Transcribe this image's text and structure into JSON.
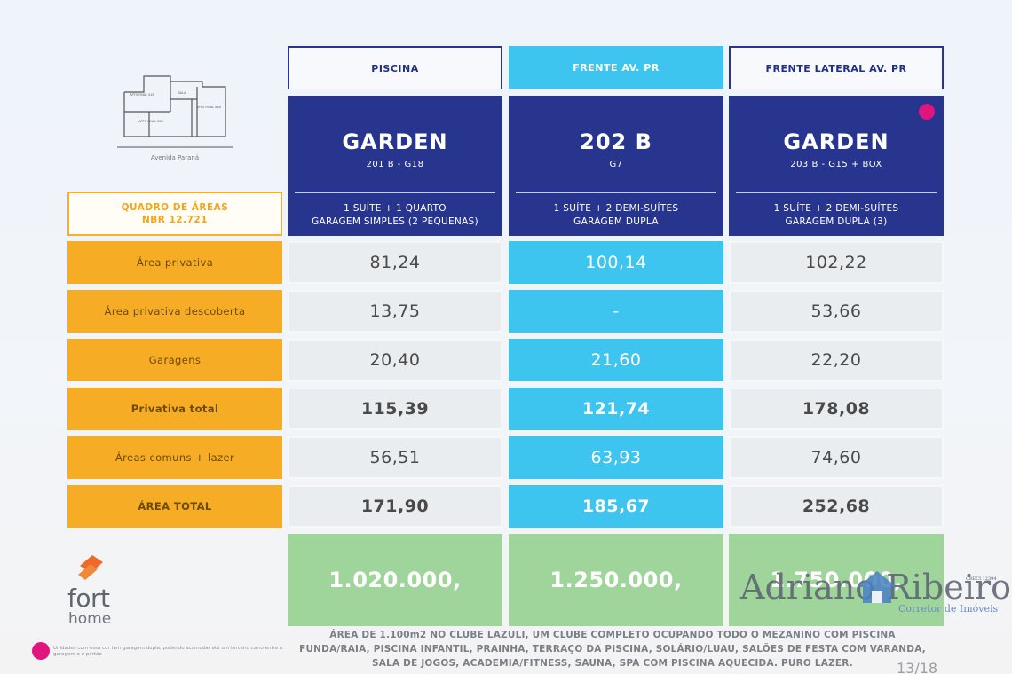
{
  "plan": {
    "rooms": [
      "APTO FINAL 01B",
      "SALA",
      "APTO FINAL 03B",
      "APTO FINAL 02B"
    ],
    "caption": "Avenida Paraná"
  },
  "quadro": {
    "line1": "QUADRO DE ÁREAS",
    "line2": "NBR 12.721"
  },
  "columns": [
    {
      "header": "PISCINA",
      "unit": "GARDEN",
      "sub": "201 B - G18",
      "desc1": "1 SUÍTE + 1 QUARTO",
      "desc2": "GARAGEM SIMPLES (2 PEQUENAS)",
      "price": "1.020.000,"
    },
    {
      "header": "FRENTE AV. PR",
      "unit": "202 B",
      "sub": "G7",
      "desc1": "1 SUÍTE + 2 DEMI-SUÍTES",
      "desc2": "GARAGEM DUPLA",
      "price": "1.250.000,"
    },
    {
      "header": "FRENTE LATERAL AV. PR",
      "unit": "GARDEN",
      "sub": "203 B - G15 + BOX",
      "desc1": "1 SUÍTE + 2 DEMI-SUÍTES",
      "desc2": "GARAGEM DUPLA (3)",
      "price": "1.750.000,"
    }
  ],
  "rows": [
    {
      "label": "Área privativa",
      "values": [
        "81,24",
        "100,14",
        "102,22"
      ]
    },
    {
      "label": "Área privativa descoberta",
      "values": [
        "13,75",
        "-",
        "53,66"
      ]
    },
    {
      "label": "Garagens",
      "values": [
        "20,40",
        "21,60",
        "22,20"
      ]
    },
    {
      "label": "Privativa total",
      "values": [
        "115,39",
        "121,74",
        "178,08"
      ]
    },
    {
      "label": "Áreas comuns + lazer",
      "values": [
        "56,51",
        "63,93",
        "74,60"
      ]
    },
    {
      "label": "ÁREA TOTAL",
      "values": [
        "171,90",
        "185,67",
        "252,68"
      ]
    }
  ],
  "logo": {
    "line1": "fort",
    "line2": "home"
  },
  "footnote": "Unidades com essa cor tem garagem dupla, podendo acomodar até um terceiro carro entre a garagem e o portão",
  "bottom_text": {
    "line1": "ÁREA DE 1.100m2 NO CLUBE LAZULI, UM CLUBE COMPLETO OCUPANDO TODO O MEZANINO COM PISCINA",
    "line2": "FUNDA/RAIA, PISCINA INFANTIL, PRAINHA, TERRAÇO DA PISCINA, SOLÁRIO/LUAU, SALÕES DE FESTA COM VARANDA,",
    "line3": "SALA DE JOGOS, ACADEMIA/FITNESS, SAUNA, SPA COM PISCINA AQUECIDA. PURO LAZER."
  },
  "watermark": {
    "name": "Adriano Ribeiro",
    "sub": "Corretor de Imóveis",
    "creci": "CRECI 12394"
  },
  "page_number": "13/18",
  "colors": {
    "navy": "#27358f",
    "cyan": "#3dc4ef",
    "orange": "#f7ac26",
    "green": "#9fd49a",
    "pink": "#e0157e"
  }
}
